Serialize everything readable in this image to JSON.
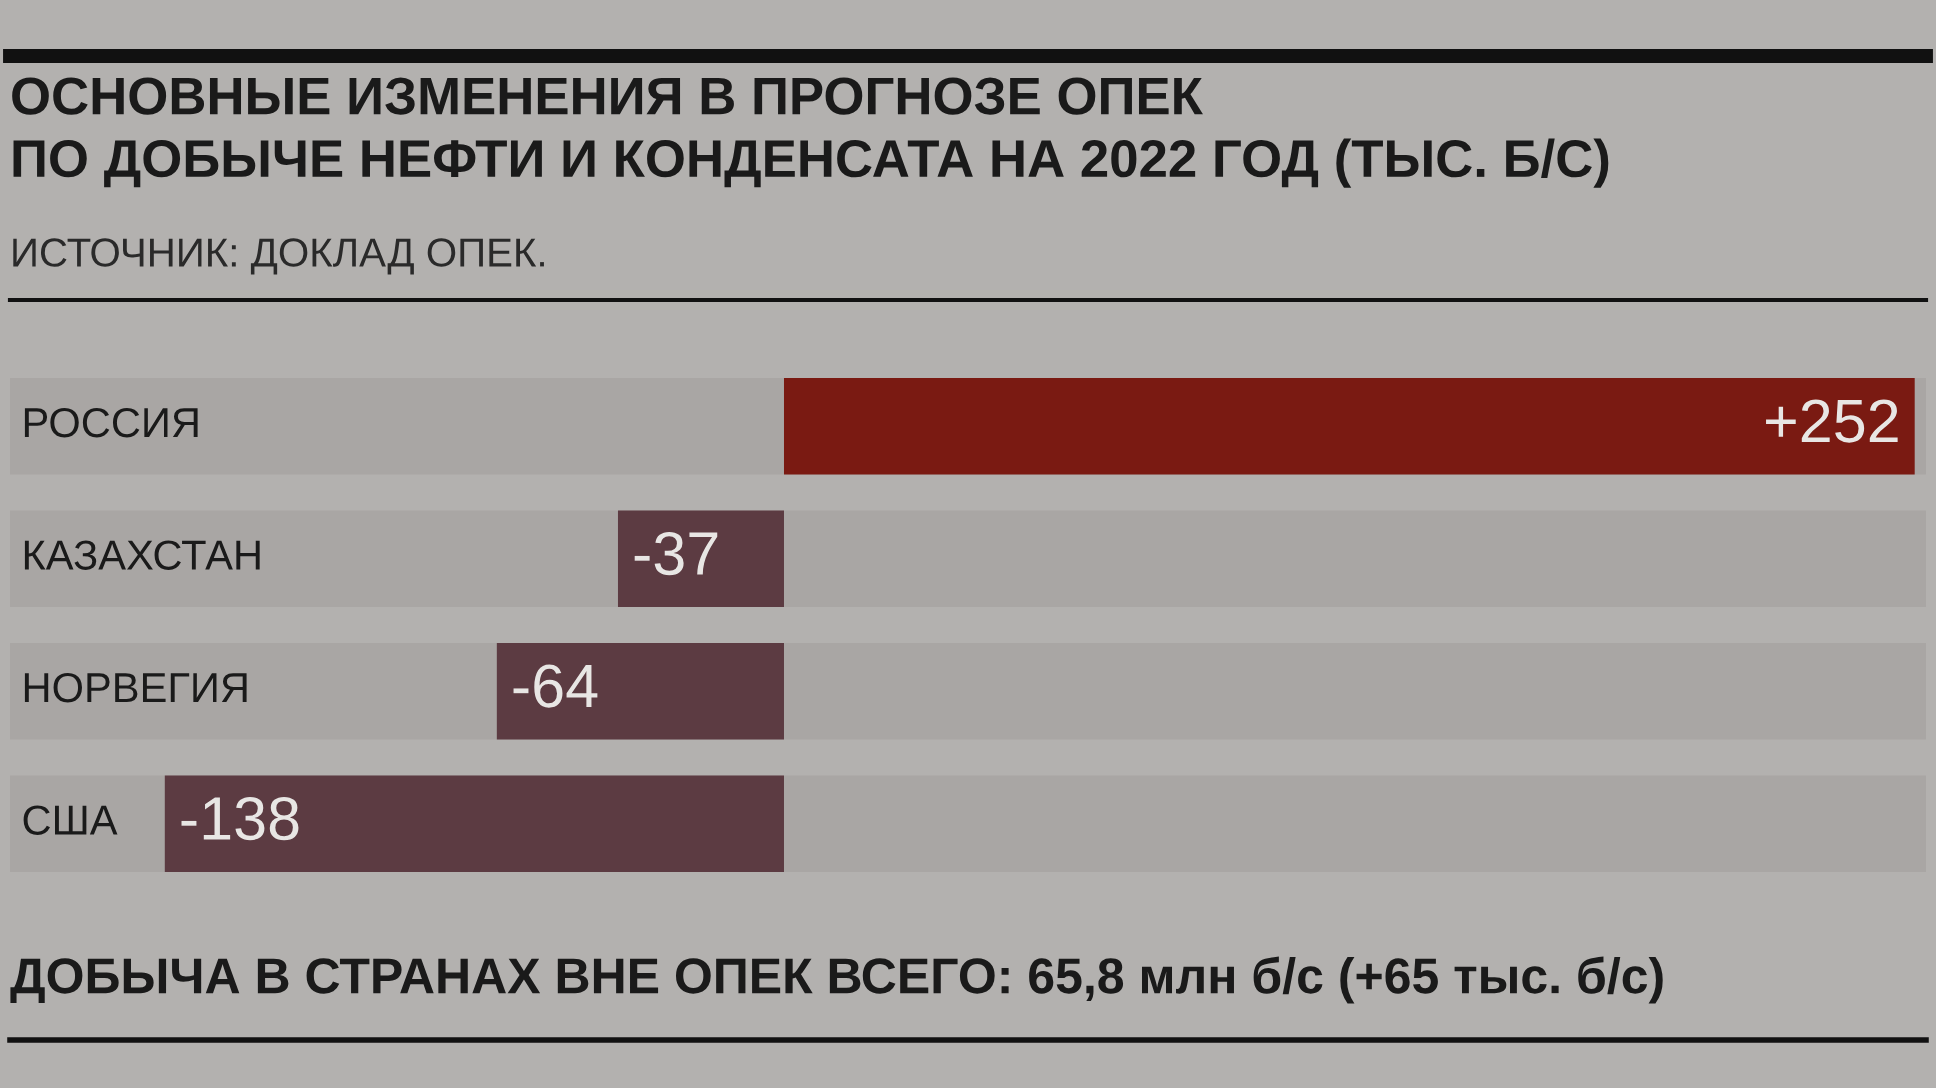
{
  "chart_data": {
    "type": "bar",
    "orientation": "horizontal",
    "title": "ОСНОВНЫЕ ИЗМЕНЕНИЯ В ПРОГНОЗЕ ОПЕК\nПО ДОБЫЧЕ НЕФТИ И КОНДЕНСАТА НА 2022 ГОД (ТЫС. Б/С)",
    "subtitle": "ИСТОЧНИК: ДОКЛАД ОПЕК.",
    "categories": [
      "РОССИЯ",
      "КАЗАХСТАН",
      "НОРВЕГИЯ",
      "США"
    ],
    "values": [
      252,
      -37,
      -64,
      -138
    ],
    "colors": [
      "#7a1a12",
      "#5c3b42",
      "#5c3b42",
      "#5c3b42"
    ],
    "value_labels": [
      "+252",
      "-37",
      "-64",
      "-138"
    ],
    "annotations": [
      "ДОБЫЧА В СТРАНАХ ВНЕ ОПЕК ВСЕГО: 65,8 млн б/с (+65 тыс. б/с)"
    ],
    "data_labels": true
  }
}
